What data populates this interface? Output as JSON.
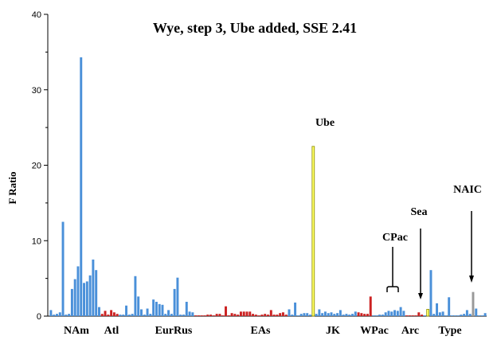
{
  "chart_data": {
    "type": "bar",
    "title": "Wye, step 3, Ube added, SSE 2.41",
    "ylabel": "F Ratio",
    "xlabel": "",
    "ylim": [
      0,
      40
    ],
    "yticks": [
      0,
      10,
      20,
      30,
      40
    ],
    "grid": false,
    "legend": "none",
    "colors": {
      "blue": "#4a90d9",
      "red": "#cc2222",
      "yellow": "#ffff66",
      "grey": "#999999"
    },
    "groups": [
      "NAm",
      "Atl",
      "EurRus",
      "EAs",
      "JK",
      "WPac",
      "Arc",
      "Type"
    ],
    "annotations": [
      "Ube",
      "CPac",
      "Sea",
      "NAIC"
    ],
    "bars": [
      {
        "v": 0.8,
        "c": "blue"
      },
      {
        "v": 0.2,
        "c": "blue"
      },
      {
        "v": 0.3,
        "c": "blue"
      },
      {
        "v": 0.5,
        "c": "blue"
      },
      {
        "v": 12.5,
        "c": "blue"
      },
      {
        "v": 0.2,
        "c": "blue"
      },
      {
        "v": 0.3,
        "c": "blue"
      },
      {
        "v": 3.6,
        "c": "blue"
      },
      {
        "v": 4.9,
        "c": "blue"
      },
      {
        "v": 6.6,
        "c": "blue"
      },
      {
        "v": 34.3,
        "c": "blue"
      },
      {
        "v": 4.4,
        "c": "blue"
      },
      {
        "v": 4.6,
        "c": "blue"
      },
      {
        "v": 5.4,
        "c": "blue"
      },
      {
        "v": 7.5,
        "c": "blue"
      },
      {
        "v": 6.1,
        "c": "blue"
      },
      {
        "v": 1.2,
        "c": "blue"
      },
      {
        "v": 0.3,
        "c": "red"
      },
      {
        "v": 0.7,
        "c": "red"
      },
      {
        "v": 0.2,
        "c": "red"
      },
      {
        "v": 0.8,
        "c": "red"
      },
      {
        "v": 0.5,
        "c": "red"
      },
      {
        "v": 0.3,
        "c": "red"
      },
      {
        "v": 0.2,
        "c": "blue"
      },
      {
        "v": 0.2,
        "c": "blue"
      },
      {
        "v": 1.4,
        "c": "blue"
      },
      {
        "v": 0.2,
        "c": "blue"
      },
      {
        "v": 0.3,
        "c": "blue"
      },
      {
        "v": 5.3,
        "c": "blue"
      },
      {
        "v": 2.6,
        "c": "blue"
      },
      {
        "v": 0.9,
        "c": "blue"
      },
      {
        "v": 0.2,
        "c": "blue"
      },
      {
        "v": 1.0,
        "c": "blue"
      },
      {
        "v": 0.3,
        "c": "blue"
      },
      {
        "v": 2.2,
        "c": "blue"
      },
      {
        "v": 1.9,
        "c": "blue"
      },
      {
        "v": 1.6,
        "c": "blue"
      },
      {
        "v": 1.5,
        "c": "blue"
      },
      {
        "v": 0.3,
        "c": "blue"
      },
      {
        "v": 0.8,
        "c": "blue"
      },
      {
        "v": 0.3,
        "c": "blue"
      },
      {
        "v": 3.6,
        "c": "blue"
      },
      {
        "v": 5.1,
        "c": "blue"
      },
      {
        "v": 0.2,
        "c": "blue"
      },
      {
        "v": 0.2,
        "c": "blue"
      },
      {
        "v": 1.9,
        "c": "blue"
      },
      {
        "v": 0.6,
        "c": "blue"
      },
      {
        "v": 0.5,
        "c": "blue"
      },
      {
        "v": 0.1,
        "c": "red"
      },
      {
        "v": 0.1,
        "c": "red"
      },
      {
        "v": 0.1,
        "c": "red"
      },
      {
        "v": 0.1,
        "c": "red"
      },
      {
        "v": 0.2,
        "c": "red"
      },
      {
        "v": 0.2,
        "c": "red"
      },
      {
        "v": 0.1,
        "c": "red"
      },
      {
        "v": 0.3,
        "c": "red"
      },
      {
        "v": 0.3,
        "c": "red"
      },
      {
        "v": 0.1,
        "c": "red"
      },
      {
        "v": 1.3,
        "c": "red"
      },
      {
        "v": 0.1,
        "c": "red"
      },
      {
        "v": 0.4,
        "c": "red"
      },
      {
        "v": 0.3,
        "c": "red"
      },
      {
        "v": 0.2,
        "c": "red"
      },
      {
        "v": 0.6,
        "c": "red"
      },
      {
        "v": 0.6,
        "c": "red"
      },
      {
        "v": 0.6,
        "c": "red"
      },
      {
        "v": 0.6,
        "c": "red"
      },
      {
        "v": 0.3,
        "c": "red"
      },
      {
        "v": 0.2,
        "c": "red"
      },
      {
        "v": 0.1,
        "c": "red"
      },
      {
        "v": 0.2,
        "c": "red"
      },
      {
        "v": 0.3,
        "c": "red"
      },
      {
        "v": 0.2,
        "c": "red"
      },
      {
        "v": 0.8,
        "c": "red"
      },
      {
        "v": 0.2,
        "c": "red"
      },
      {
        "v": 0.2,
        "c": "red"
      },
      {
        "v": 0.4,
        "c": "red"
      },
      {
        "v": 0.5,
        "c": "red"
      },
      {
        "v": 0.2,
        "c": "red"
      },
      {
        "v": 0.9,
        "c": "blue"
      },
      {
        "v": 0.2,
        "c": "blue"
      },
      {
        "v": 1.8,
        "c": "blue"
      },
      {
        "v": 0.1,
        "c": "blue"
      },
      {
        "v": 0.3,
        "c": "blue"
      },
      {
        "v": 0.4,
        "c": "blue"
      },
      {
        "v": 0.4,
        "c": "blue"
      },
      {
        "v": 0.2,
        "c": "blue"
      },
      {
        "v": 22.5,
        "c": "yellow"
      },
      {
        "v": 0.3,
        "c": "blue"
      },
      {
        "v": 0.9,
        "c": "blue"
      },
      {
        "v": 0.4,
        "c": "blue"
      },
      {
        "v": 0.6,
        "c": "blue"
      },
      {
        "v": 0.4,
        "c": "blue"
      },
      {
        "v": 0.5,
        "c": "blue"
      },
      {
        "v": 0.3,
        "c": "blue"
      },
      {
        "v": 0.4,
        "c": "blue"
      },
      {
        "v": 0.8,
        "c": "blue"
      },
      {
        "v": 0.2,
        "c": "blue"
      },
      {
        "v": 0.3,
        "c": "blue"
      },
      {
        "v": 0.2,
        "c": "blue"
      },
      {
        "v": 0.3,
        "c": "blue"
      },
      {
        "v": 0.6,
        "c": "blue"
      },
      {
        "v": 0.5,
        "c": "red"
      },
      {
        "v": 0.4,
        "c": "red"
      },
      {
        "v": 0.3,
        "c": "red"
      },
      {
        "v": 0.3,
        "c": "red"
      },
      {
        "v": 2.6,
        "c": "red"
      },
      {
        "v": 0.1,
        "c": "blue"
      },
      {
        "v": 0.1,
        "c": "blue"
      },
      {
        "v": 0.2,
        "c": "blue"
      },
      {
        "v": 0.2,
        "c": "blue"
      },
      {
        "v": 0.5,
        "c": "blue"
      },
      {
        "v": 0.7,
        "c": "blue"
      },
      {
        "v": 0.6,
        "c": "blue"
      },
      {
        "v": 0.8,
        "c": "blue"
      },
      {
        "v": 0.7,
        "c": "blue"
      },
      {
        "v": 1.2,
        "c": "blue"
      },
      {
        "v": 0.7,
        "c": "blue"
      },
      {
        "v": 0.1,
        "c": "red"
      },
      {
        "v": 0.1,
        "c": "red"
      },
      {
        "v": 0.1,
        "c": "red"
      },
      {
        "v": 0.1,
        "c": "red"
      },
      {
        "v": 0.5,
        "c": "red"
      },
      {
        "v": 0.2,
        "c": "red"
      },
      {
        "v": 0.1,
        "c": "blue"
      },
      {
        "v": 0.9,
        "c": "yellow"
      },
      {
        "v": 6.1,
        "c": "blue"
      },
      {
        "v": 0.3,
        "c": "blue"
      },
      {
        "v": 1.7,
        "c": "blue"
      },
      {
        "v": 0.5,
        "c": "blue"
      },
      {
        "v": 0.6,
        "c": "blue"
      },
      {
        "v": 0.1,
        "c": "blue"
      },
      {
        "v": 2.5,
        "c": "blue"
      },
      {
        "v": 0.1,
        "c": "blue"
      },
      {
        "v": 0.1,
        "c": "blue"
      },
      {
        "v": 0.1,
        "c": "blue"
      },
      {
        "v": 0.2,
        "c": "blue"
      },
      {
        "v": 0.3,
        "c": "blue"
      },
      {
        "v": 0.8,
        "c": "blue"
      },
      {
        "v": 0.3,
        "c": "blue"
      },
      {
        "v": 3.2,
        "c": "grey"
      },
      {
        "v": 1.0,
        "c": "blue"
      },
      {
        "v": 0.1,
        "c": "blue"
      },
      {
        "v": 0.1,
        "c": "blue"
      },
      {
        "v": 0.4,
        "c": "blue"
      }
    ]
  }
}
